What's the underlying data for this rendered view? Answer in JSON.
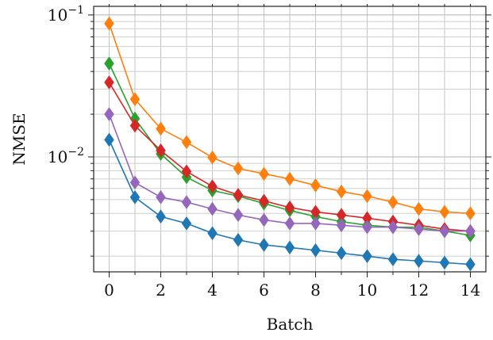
{
  "chart_data": {
    "type": "line",
    "title": "",
    "xlabel": "Batch",
    "ylabel": "NMSE",
    "yscale": "log",
    "xlim": [
      -0.6,
      14.6
    ],
    "ylim": [
      0.00155,
      0.115
    ],
    "grid": true,
    "legend": "none",
    "x": [
      0,
      1,
      2,
      3,
      4,
      5,
      6,
      7,
      8,
      9,
      10,
      11,
      12,
      13,
      14
    ],
    "x_ticks": [
      0,
      2,
      4,
      6,
      8,
      10,
      12,
      14
    ],
    "x_tick_labels": [
      "0",
      "2",
      "4",
      "6",
      "8",
      "10",
      "12",
      "14"
    ],
    "y_ticks": [
      0.01,
      0.1
    ],
    "y_tick_labels": [
      {
        "base": "10",
        "exp": "−2"
      },
      {
        "base": "10",
        "exp": "−1"
      }
    ],
    "marker": "diamond",
    "series": [
      {
        "color": "#ff7f0e",
        "values": [
          0.087,
          0.0255,
          0.0158,
          0.0127,
          0.0099,
          0.0083,
          0.0076,
          0.007,
          0.0063,
          0.0057,
          0.0053,
          0.0048,
          0.0043,
          0.0041,
          0.004
        ]
      },
      {
        "color": "#2ca02c",
        "values": [
          0.0455,
          0.0186,
          0.0105,
          0.0072,
          0.0058,
          0.0053,
          0.0047,
          0.0042,
          0.0038,
          0.0035,
          0.0033,
          0.0032,
          0.0032,
          0.003,
          0.0028
        ]
      },
      {
        "color": "#d62728",
        "values": [
          0.0335,
          0.0166,
          0.0111,
          0.0079,
          0.0062,
          0.0054,
          0.0049,
          0.0044,
          0.0041,
          0.0039,
          0.0037,
          0.0035,
          0.0033,
          0.0031,
          0.003
        ]
      },
      {
        "color": "#9467bd",
        "values": [
          0.02,
          0.0066,
          0.0052,
          0.0048,
          0.0043,
          0.0039,
          0.0036,
          0.0034,
          0.0034,
          0.0033,
          0.0032,
          0.0032,
          0.0031,
          0.003,
          0.003
        ]
      },
      {
        "color": "#1f77b4",
        "values": [
          0.0132,
          0.0052,
          0.0038,
          0.0034,
          0.0029,
          0.0026,
          0.0024,
          0.0023,
          0.0022,
          0.0021,
          0.002,
          0.0019,
          0.00185,
          0.0018,
          0.00175
        ]
      }
    ]
  }
}
